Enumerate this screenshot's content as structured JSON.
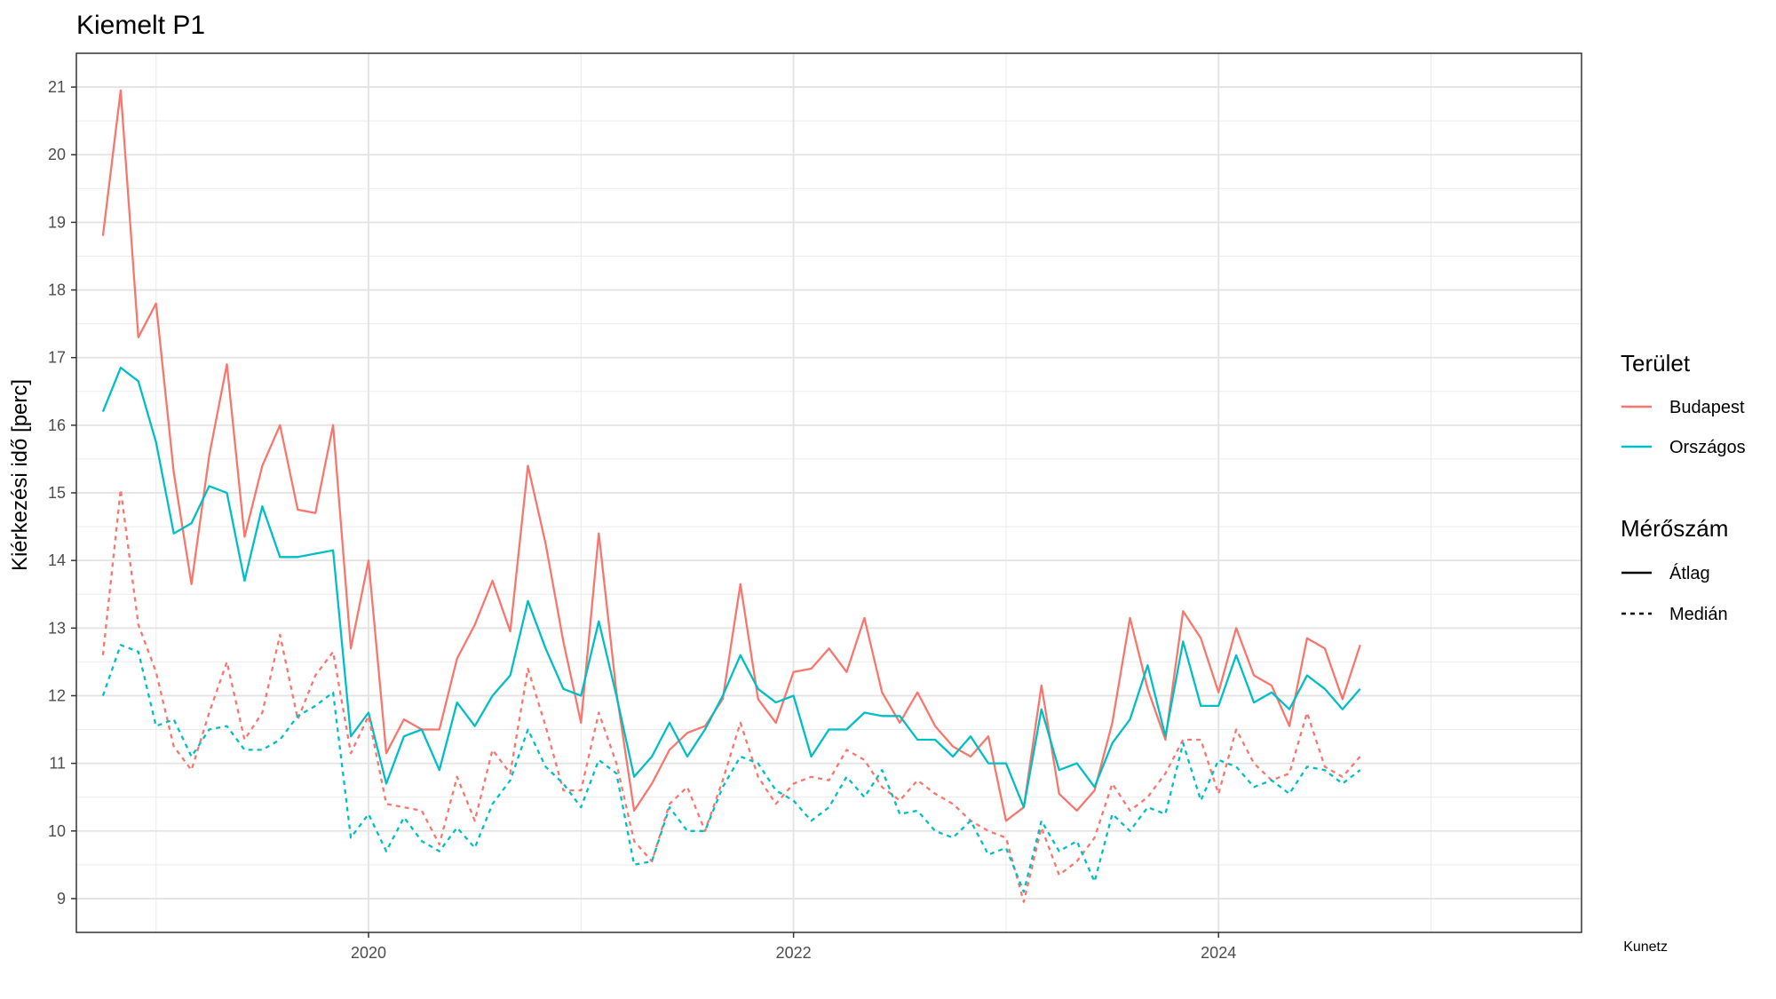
{
  "chart_data": {
    "type": "line",
    "title": "Kiemelt P1",
    "xlabel": "",
    "ylabel": "Kiérkezési idő [perc]",
    "caption": "Kunetz",
    "x_start": "2018-10",
    "x_ticks": [
      "2020",
      "2022",
      "2024"
    ],
    "ylim": [
      8.5,
      21.5
    ],
    "y_ticks": [
      9,
      10,
      11,
      12,
      13,
      14,
      15,
      16,
      17,
      18,
      19,
      20,
      21
    ],
    "grid": true,
    "legend_position": "right",
    "legend": {
      "color_title": "Terület",
      "linetype_title": "Mérőszám",
      "color_items": [
        {
          "label": "Budapest",
          "color": "#F8766D"
        },
        {
          "label": "Országos",
          "color": "#00BFC4"
        }
      ],
      "linetype_items": [
        {
          "label": "Átlag",
          "style": "solid"
        },
        {
          "label": "Medián",
          "style": "dashed"
        }
      ]
    },
    "series": [
      {
        "area": "Budapest",
        "measure": "Átlag",
        "color": "#F8766D",
        "style": "solid",
        "values": [
          18.8,
          20.95,
          17.3,
          17.8,
          15.3,
          13.65,
          15.55,
          16.9,
          14.35,
          15.4,
          16.0,
          14.75,
          14.7,
          16.0,
          12.7,
          14.0,
          11.15,
          11.65,
          11.5,
          11.5,
          12.55,
          13.05,
          13.7,
          12.95,
          15.4,
          14.25,
          12.8,
          11.6,
          14.4,
          12.05,
          10.3,
          10.7,
          11.2,
          11.45,
          11.55,
          11.95,
          13.65,
          11.95,
          11.6,
          12.35,
          12.4,
          12.7,
          12.35,
          13.15,
          12.05,
          11.6,
          12.05,
          11.55,
          11.25,
          11.1,
          11.4,
          10.15,
          10.35,
          12.15,
          10.55,
          10.3,
          10.6,
          11.6,
          13.15,
          12.1,
          11.35,
          13.25,
          12.85,
          12.05,
          13.0,
          12.3,
          12.15,
          11.55,
          12.85,
          12.7,
          11.95,
          12.75
        ]
      },
      {
        "area": "Országos",
        "measure": "Átlag",
        "color": "#00BFC4",
        "style": "solid",
        "values": [
          16.2,
          16.85,
          16.65,
          15.75,
          14.4,
          14.55,
          15.1,
          15.0,
          13.7,
          14.8,
          14.05,
          14.05,
          14.1,
          14.15,
          11.4,
          11.75,
          10.7,
          11.4,
          11.5,
          10.9,
          11.9,
          11.55,
          12.0,
          12.3,
          13.4,
          12.7,
          12.1,
          12.0,
          13.1,
          12.0,
          10.8,
          11.1,
          11.6,
          11.1,
          11.5,
          12.0,
          12.6,
          12.1,
          11.9,
          12.0,
          11.1,
          11.5,
          11.5,
          11.75,
          11.7,
          11.7,
          11.35,
          11.35,
          11.1,
          11.4,
          11.0,
          11.0,
          10.35,
          11.8,
          10.9,
          11.0,
          10.65,
          11.3,
          11.65,
          12.45,
          11.4,
          12.8,
          11.85,
          11.85,
          12.6,
          11.9,
          12.05,
          11.8,
          12.3,
          12.1,
          11.8,
          12.1
        ]
      },
      {
        "area": "Budapest",
        "measure": "Medián",
        "color": "#F8766D",
        "style": "dashed",
        "values": [
          12.6,
          15.05,
          13.05,
          12.35,
          11.25,
          10.9,
          11.75,
          12.5,
          11.35,
          11.75,
          12.9,
          11.65,
          12.3,
          12.65,
          11.15,
          11.7,
          10.4,
          10.35,
          10.3,
          9.8,
          10.8,
          10.15,
          11.2,
          10.85,
          12.4,
          11.55,
          10.6,
          10.6,
          11.75,
          11.0,
          9.85,
          9.55,
          10.4,
          10.65,
          10.0,
          10.75,
          11.6,
          10.8,
          10.4,
          10.7,
          10.8,
          10.75,
          11.2,
          11.05,
          10.65,
          10.45,
          10.75,
          10.55,
          10.4,
          10.15,
          10.0,
          9.9,
          8.95,
          10.05,
          9.35,
          9.55,
          9.9,
          10.7,
          10.3,
          10.5,
          10.85,
          11.35,
          11.35,
          10.55,
          11.5,
          11.0,
          10.75,
          10.85,
          11.75,
          10.95,
          10.8,
          11.1
        ]
      },
      {
        "area": "Országos",
        "measure": "Medián",
        "color": "#00BFC4",
        "style": "dashed",
        "values": [
          12.0,
          12.75,
          12.65,
          11.55,
          11.65,
          11.1,
          11.5,
          11.55,
          11.2,
          11.2,
          11.35,
          11.7,
          11.85,
          12.05,
          9.9,
          10.25,
          9.7,
          10.2,
          9.85,
          9.7,
          10.05,
          9.75,
          10.4,
          10.75,
          11.5,
          10.95,
          10.7,
          10.35,
          11.05,
          10.85,
          9.5,
          9.55,
          10.35,
          10.0,
          10.0,
          10.65,
          11.1,
          11.0,
          10.6,
          10.45,
          10.15,
          10.35,
          10.8,
          10.5,
          10.9,
          10.25,
          10.3,
          10.0,
          9.9,
          10.15,
          9.65,
          9.75,
          9.1,
          10.15,
          9.7,
          9.85,
          9.25,
          10.25,
          10.0,
          10.35,
          10.25,
          11.3,
          10.45,
          11.05,
          10.95,
          10.65,
          10.75,
          10.55,
          10.95,
          10.9,
          10.7,
          10.9
        ]
      }
    ]
  }
}
